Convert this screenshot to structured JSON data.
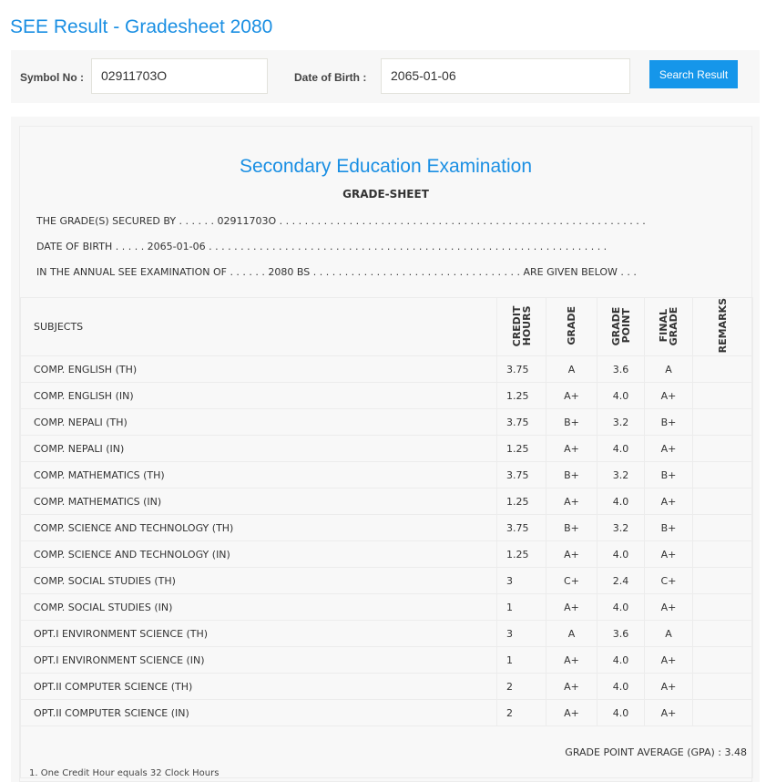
{
  "page_title": "SEE Result - Gradesheet 2080",
  "form": {
    "symbol_label": "Symbol No :",
    "symbol_value": "02911703O",
    "dob_label": "Date of Birth :",
    "dob_value": "2065-01-06",
    "search_label": "Search Result"
  },
  "sheet": {
    "exam_title": "Secondary Education Examination",
    "subtitle": "GRADE-SHEET",
    "line1": "THE GRADE(S) SECURED BY . . . . . . 02911703O . . . . . . . . . . . . . . . . . . . . . . . . . . . . . . . . . . . . . . . . . . . . . . . . . . . . . . . . . .",
    "line2": "DATE OF BIRTH . . . . . 2065-01-06 . . . . . . . . . . . . . . . . . . . . . . . . . . . . . . . . . . . . . . . . . . . . . . . . . . . . . . . . . . . . . . .",
    "line3": "IN THE ANNUAL SEE EXAMINATION OF . . . . . . 2080 BS . . . . . . . . . . . . . . . . . . . . . . . . . . . . . . . . . ARE GIVEN BELOW . . .",
    "headers": [
      "SUBJECTS",
      "CREDIT HOURS",
      "GRADE",
      "GRADE POINT",
      "FINAL GRADE",
      "REMARKS"
    ],
    "rows": [
      [
        "COMP. ENGLISH (TH)",
        "3.75",
        "A",
        "3.6",
        "A"
      ],
      [
        "COMP. ENGLISH (IN)",
        "1.25",
        "A+",
        "4.0",
        "A+"
      ],
      [
        "COMP. NEPALI (TH)",
        "3.75",
        "B+",
        "3.2",
        "B+"
      ],
      [
        "COMP. NEPALI (IN)",
        "1.25",
        "A+",
        "4.0",
        "A+"
      ],
      [
        "COMP. MATHEMATICS (TH)",
        "3.75",
        "B+",
        "3.2",
        "B+"
      ],
      [
        "COMP. MATHEMATICS (IN)",
        "1.25",
        "A+",
        "4.0",
        "A+"
      ],
      [
        "COMP. SCIENCE AND TECHNOLOGY (TH)",
        "3.75",
        "B+",
        "3.2",
        "B+"
      ],
      [
        "COMP. SCIENCE AND TECHNOLOGY (IN)",
        "1.25",
        "A+",
        "4.0",
        "A+"
      ],
      [
        "COMP. SOCIAL STUDIES (TH)",
        "3",
        "C+",
        "2.4",
        "C+"
      ],
      [
        "COMP. SOCIAL STUDIES (IN)",
        "1",
        "A+",
        "4.0",
        "A+"
      ],
      [
        "OPT.I ENVIRONMENT SCIENCE (TH)",
        "3",
        "A",
        "3.6",
        "A"
      ],
      [
        "OPT.I ENVIRONMENT SCIENCE (IN)",
        "1",
        "A+",
        "4.0",
        "A+"
      ],
      [
        "OPT.II COMPUTER SCIENCE (TH)",
        "2",
        "A+",
        "4.0",
        "A+"
      ],
      [
        "OPT.II COMPUTER SCIENCE (IN)",
        "2",
        "A+",
        "4.0",
        "A+"
      ]
    ],
    "gpa": "GRADE POINT AVERAGE (GPA) : 3.48",
    "note": "1. One Credit Hour equals 32 Clock Hours"
  }
}
